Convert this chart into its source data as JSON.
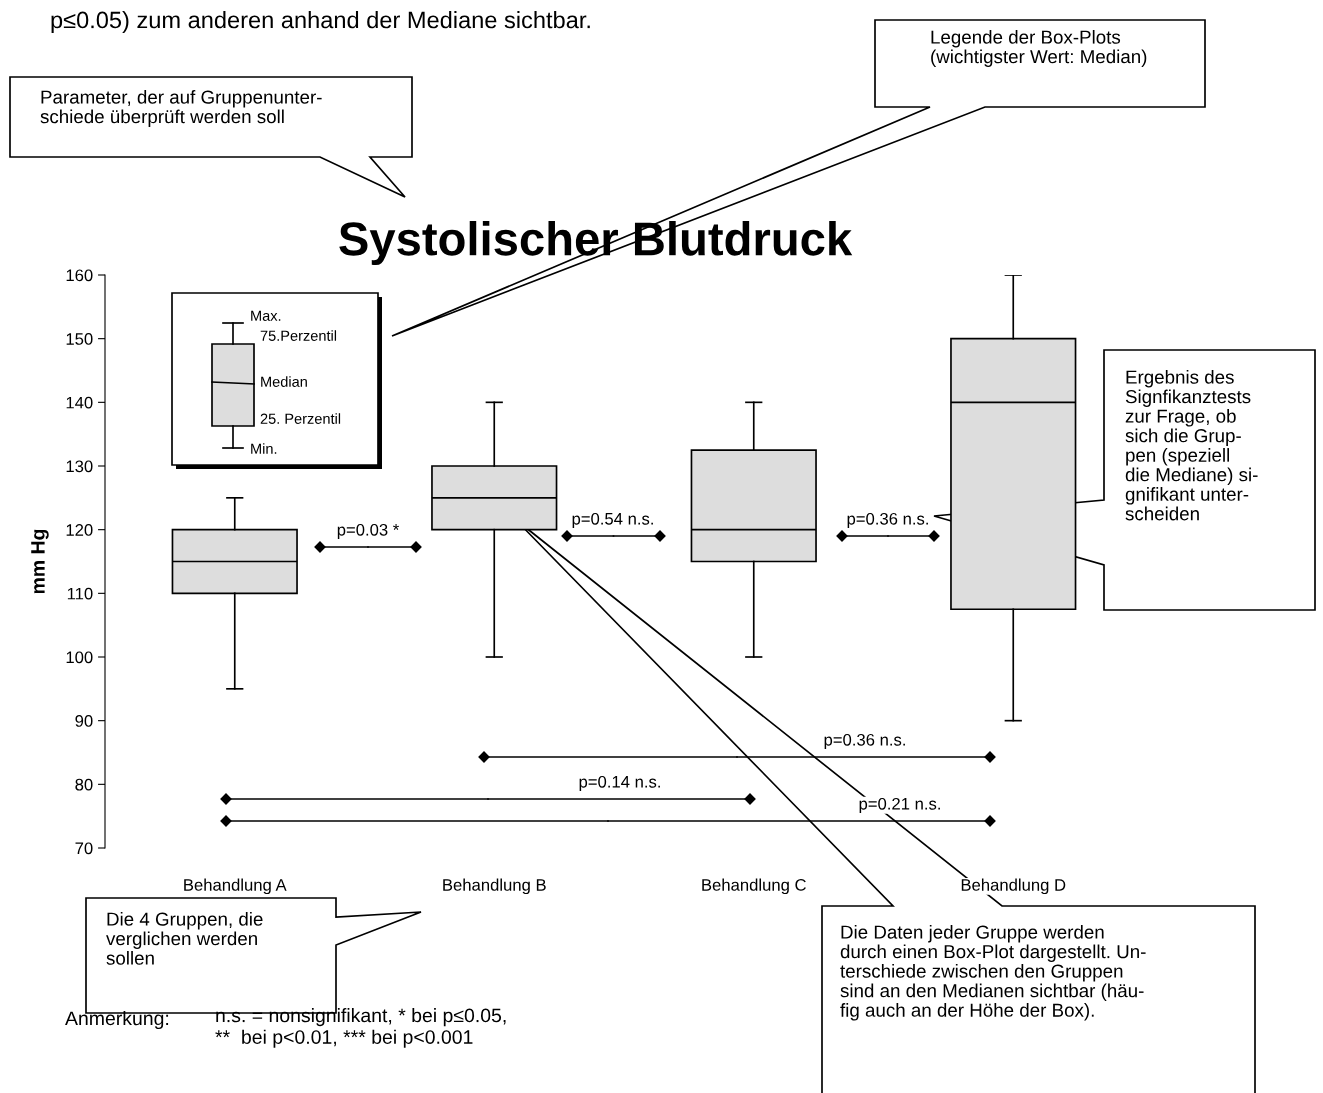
{
  "chart_data": {
    "type": "box",
    "title": "Systolischer Blutdruck",
    "ylabel": "mm Hg",
    "categories": [
      "Behandlung A",
      "Behandlung B",
      "Behandlung C",
      "Behandlung D"
    ],
    "boxes": [
      {
        "low": 95,
        "q1": 110,
        "median": 115,
        "q3": 120,
        "high": 125
      },
      {
        "low": 100,
        "q1": 120,
        "median": 125,
        "q3": 130,
        "high": 140
      },
      {
        "low": 100,
        "q1": 115,
        "median": 120,
        "q3": 132.5,
        "high": 140
      },
      {
        "low": 90,
        "q1": 107.5,
        "median": 140,
        "q3": 150,
        "high": 160
      }
    ],
    "color": "#dddddd",
    "ylim": [
      70,
      160
    ],
    "yticks": [
      70,
      80,
      90,
      100,
      110,
      120,
      130,
      140,
      150,
      160
    ],
    "grid": false,
    "annotations": [
      "p≤0.05) zum anderen anhand der Mediane sichtbar.",
      "Parameter, der auf Gruppenunter-\nschiede überprüft werden soll",
      "Legende der Box-Plots\n(wichtigster Wert: Median)",
      "Ergebnis des\nSignfikanztests\nzur Frage, ob\nsich die Grup-\npen (speziell\ndie Mediane) si-\ngnifikant unter-\nscheiden",
      "Die 4 Gruppen, die\nverglichen werden\nsollen",
      "Die Daten jeder Gruppe werden\ndurch einen Box-Plot dargestellt. Un-\nterschiede zwischen den Gruppen\nsind an den Medianen sichtbar (häu-\nfig auch an der Höhe der Box).",
      "Anmerkung:",
      "n.s. = nonsignifikant, * bei p≤0.05,\n**  bei p<0.01, *** bei p<0.001",
      "Max.",
      "75.Perzentil",
      "Median",
      "25. Perzentil",
      "Min.",
      "p=0.03 *",
      "p=0.54 n.s.",
      "p=0.36 n.s.",
      "p=0.36 n.s.",
      "p=0.14 n.s.",
      "p=0.21 n.s."
    ]
  }
}
